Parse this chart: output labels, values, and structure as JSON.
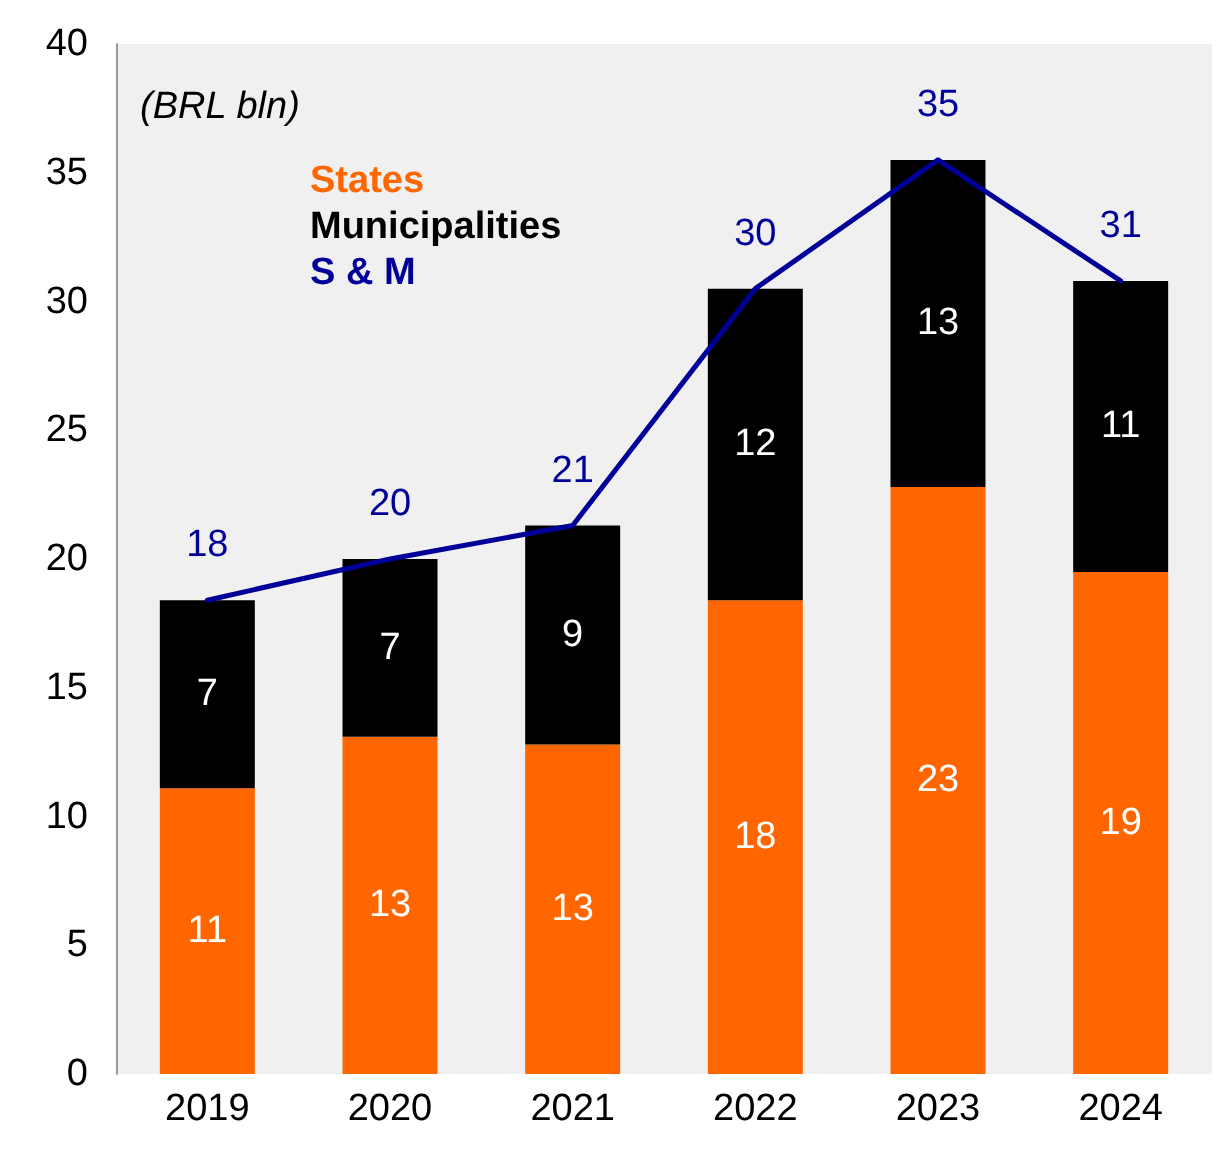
{
  "chart_data": {
    "type": "bar",
    "stacked": true,
    "categories": [
      "2019",
      "2020",
      "2021",
      "2022",
      "2023",
      "2024"
    ],
    "series": [
      {
        "name": "States",
        "color": "#ff6600",
        "values": [
          11.1,
          13.1,
          12.8,
          18.4,
          22.8,
          19.5
        ],
        "value_labels": [
          "11",
          "13",
          "13",
          "18",
          "23",
          "19"
        ]
      },
      {
        "name": "Municipalities",
        "color": "#000000",
        "values": [
          7.3,
          6.9,
          8.5,
          12.1,
          12.7,
          11.3
        ],
        "value_labels": [
          "7",
          "7",
          "9",
          "12",
          "13",
          "11"
        ]
      },
      {
        "name": "S & M",
        "type": "line",
        "color": "#000099",
        "values": [
          18.4,
          20.0,
          21.3,
          30.5,
          35.5,
          30.8
        ],
        "value_labels": [
          "18",
          "20",
          "21",
          "30",
          "35",
          "31"
        ]
      }
    ],
    "ylim": [
      0,
      40
    ],
    "yticks": [
      0,
      5,
      10,
      15,
      20,
      25,
      30,
      35,
      40
    ],
    "grid": false,
    "legend": "top left",
    "marker": "none",
    "line_style": "solid",
    "annotations": [
      "(BRL bln)"
    ]
  }
}
